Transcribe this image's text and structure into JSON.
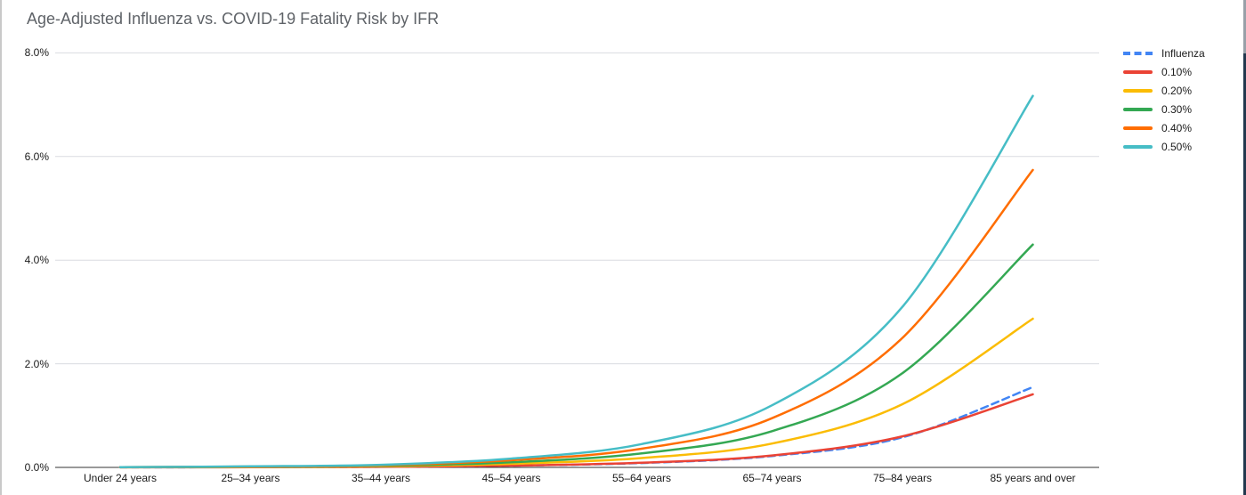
{
  "chart_data": {
    "type": "line",
    "title": "Age-Adjusted Influenza vs. COVID-19 Fatality Risk by IFR",
    "categories": [
      "Under 24 years",
      "25–34 years",
      "35–44 years",
      "45–54 years",
      "55–64 years",
      "65–74 years",
      "75–84 years",
      "85 years and over"
    ],
    "series": [
      {
        "name": "Influenza",
        "color": "#4285F4",
        "style": "dashed",
        "values": [
          0.001,
          0.005,
          0.012,
          0.035,
          0.085,
          0.22,
          0.58,
          1.55
        ]
      },
      {
        "name": "0.10%",
        "color": "#EA4335",
        "style": "solid",
        "values": [
          0.001,
          0.004,
          0.01,
          0.035,
          0.09,
          0.23,
          0.6,
          1.41
        ]
      },
      {
        "name": "0.20%",
        "color": "#FBBC04",
        "style": "solid",
        "values": [
          0.002,
          0.008,
          0.02,
          0.07,
          0.18,
          0.46,
          1.22,
          2.87
        ]
      },
      {
        "name": "0.30%",
        "color": "#34A853",
        "style": "solid",
        "values": [
          0.003,
          0.012,
          0.03,
          0.1,
          0.27,
          0.7,
          1.82,
          4.3
        ]
      },
      {
        "name": "0.40%",
        "color": "#FF6D01",
        "style": "solid",
        "values": [
          0.004,
          0.016,
          0.04,
          0.14,
          0.36,
          0.95,
          2.5,
          5.74
        ]
      },
      {
        "name": "0.50%",
        "color": "#46BDC6",
        "style": "solid",
        "values": [
          0.005,
          0.02,
          0.05,
          0.17,
          0.45,
          1.2,
          3.1,
          7.17
        ]
      }
    ],
    "y_ticks": [
      {
        "label": "0.0%",
        "value": 0
      },
      {
        "label": "2.0%",
        "value": 2
      },
      {
        "label": "4.0%",
        "value": 4
      },
      {
        "label": "6.0%",
        "value": 6
      },
      {
        "label": "8.0%",
        "value": 8
      }
    ],
    "ylim": [
      0,
      8
    ],
    "xlabel": "",
    "ylabel": "",
    "grid": true,
    "smooth": true,
    "legend_position": "top-right",
    "colors": {
      "gridline": "#dadce0",
      "axis_line": "#333333",
      "title_text": "#5f6368",
      "label_text": "#1a1a1a"
    }
  }
}
